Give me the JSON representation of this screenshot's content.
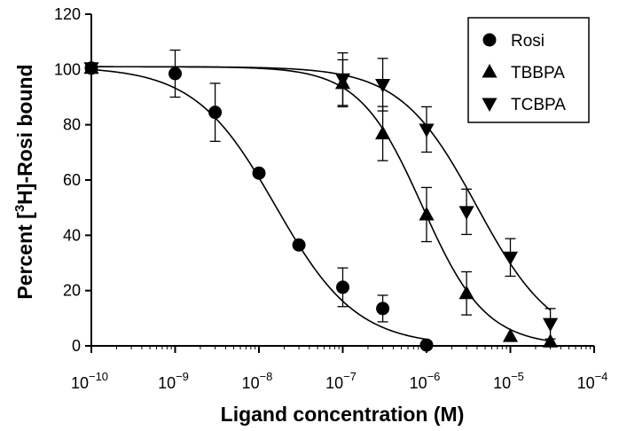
{
  "chart_data": {
    "type": "scatter",
    "xscale": "log",
    "xlim": [
      1e-10,
      0.0001
    ],
    "ylim": [
      0,
      120
    ],
    "xticks": [
      {
        "exp": -10,
        "base": "10",
        "sup": "−10"
      },
      {
        "exp": -9,
        "base": "10",
        "sup": "−9"
      },
      {
        "exp": -8,
        "base": "10",
        "sup": "−8"
      },
      {
        "exp": -7,
        "base": "10",
        "sup": "−7"
      },
      {
        "exp": -6,
        "base": "10",
        "sup": "−6"
      },
      {
        "exp": -5,
        "base": "10",
        "sup": "−5"
      },
      {
        "exp": -4,
        "base": "10",
        "sup": "−4"
      }
    ],
    "yticks": [
      0,
      20,
      40,
      60,
      80,
      100,
      120
    ],
    "xlabel": "Ligand concentration (M)",
    "ylabel": {
      "pre": "Percent [",
      "sup": "3",
      "post": "H]-Rosi bound"
    },
    "legend_position": "top-right",
    "grid": false,
    "series": [
      {
        "name": "Rosi",
        "marker": "circle",
        "color": "#000000",
        "points": [
          {
            "x": 1e-10,
            "y": 100.5,
            "err": 0
          },
          {
            "x": 1e-09,
            "y": 98.5,
            "err": 8.5
          },
          {
            "x": 3e-09,
            "y": 84.5,
            "err": 10.5
          },
          {
            "x": 1e-08,
            "y": 62.5,
            "err": 0
          },
          {
            "x": 3e-08,
            "y": 36.5,
            "err": 0
          },
          {
            "x": 1e-07,
            "y": 21.2,
            "err": 7.0
          },
          {
            "x": 3e-07,
            "y": 13.5,
            "err": 4.8
          },
          {
            "x": 1e-06,
            "y": 0.3,
            "err": 0
          }
        ],
        "fit": {
          "top": 101,
          "bottom": 0,
          "log_ic50": -7.8,
          "hill": 0.9,
          "x_range": [
            1e-10,
            1e-06
          ]
        }
      },
      {
        "name": "TBBPA",
        "marker": "triangle-up",
        "color": "#000000",
        "points": [
          {
            "x": 1e-10,
            "y": 100.5,
            "err": 0
          },
          {
            "x": 1e-07,
            "y": 95.0,
            "err": 8.5
          },
          {
            "x": 3e-07,
            "y": 76.8,
            "err": 9.8
          },
          {
            "x": 1e-06,
            "y": 47.5,
            "err": 9.8
          },
          {
            "x": 3e-06,
            "y": 19.0,
            "err": 7.8
          },
          {
            "x": 1e-05,
            "y": 3.5,
            "err": 0
          },
          {
            "x": 3e-05,
            "y": 1.5,
            "err": 0
          }
        ],
        "fit": {
          "top": 101,
          "bottom": 0,
          "log_ic50": -6.05,
          "hill": 1.15,
          "x_range": [
            1e-10,
            3e-05
          ]
        }
      },
      {
        "name": "TCBPA",
        "marker": "triangle-down",
        "color": "#000000",
        "points": [
          {
            "x": 1e-10,
            "y": 100.5,
            "err": 0
          },
          {
            "x": 1e-07,
            "y": 96.5,
            "err": 9.5
          },
          {
            "x": 3e-07,
            "y": 94.5,
            "err": 9.5
          },
          {
            "x": 1e-06,
            "y": 78.3,
            "err": 8.2
          },
          {
            "x": 3e-06,
            "y": 48.5,
            "err": 8.2
          },
          {
            "x": 1e-05,
            "y": 32.0,
            "err": 6.8
          },
          {
            "x": 3e-05,
            "y": 8.0,
            "err": 5.5
          }
        ],
        "fit": {
          "top": 101,
          "bottom": 0,
          "log_ic50": -5.4,
          "hill": 0.95,
          "x_range": [
            1e-10,
            3e-05
          ]
        }
      }
    ]
  }
}
